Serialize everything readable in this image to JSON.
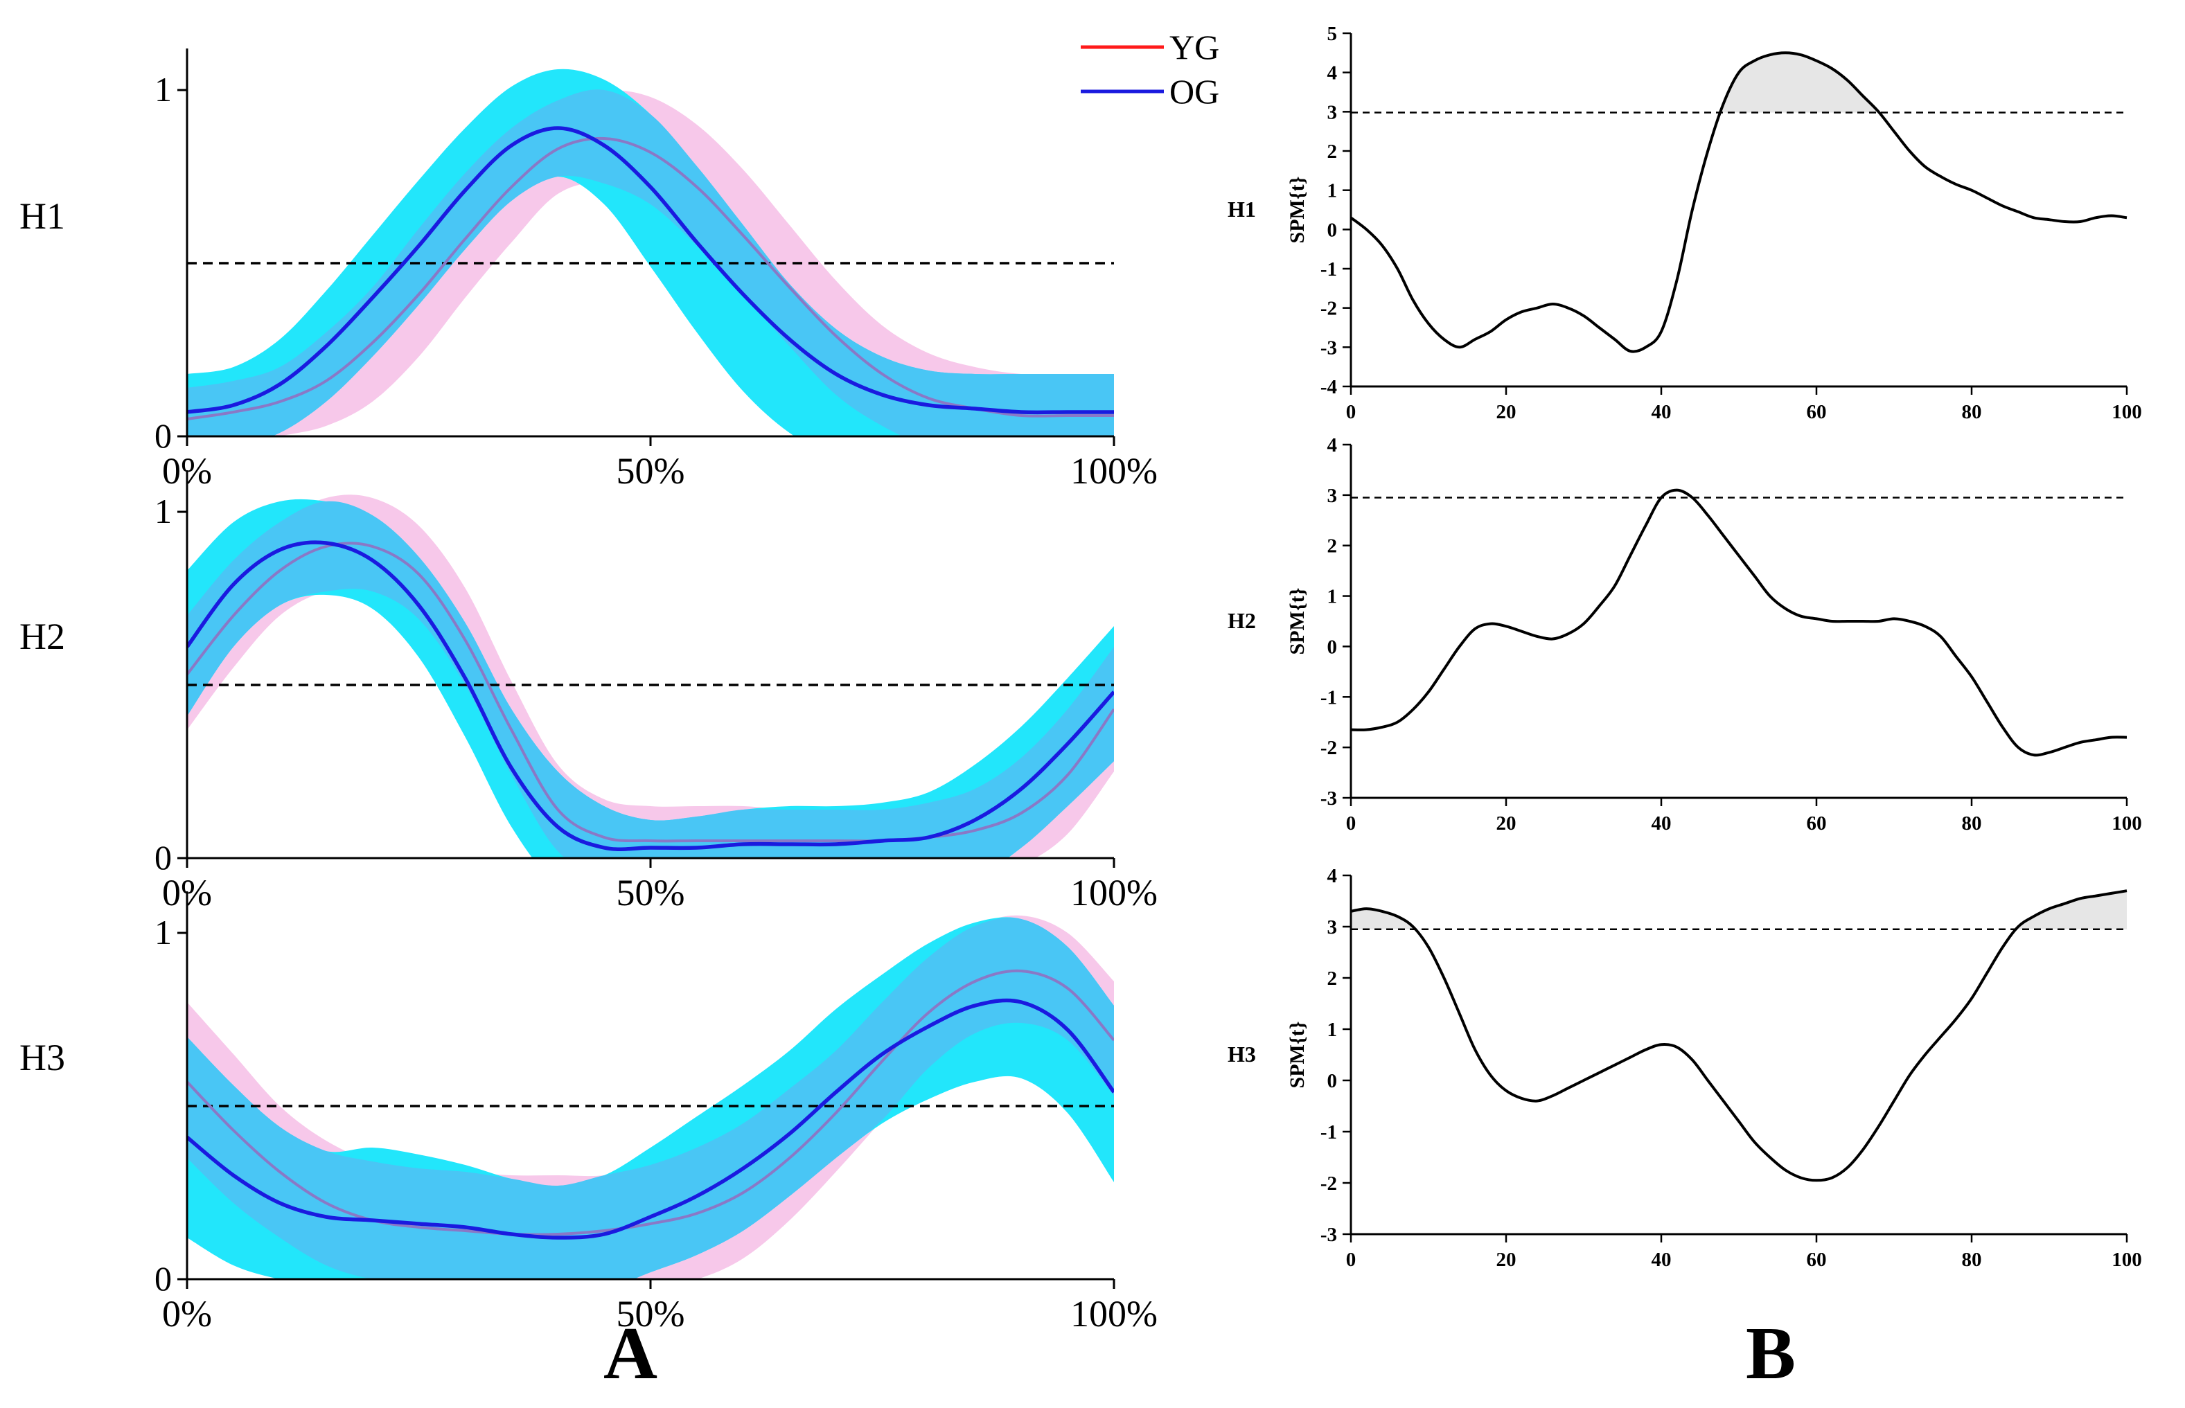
{
  "figure": {
    "panel_labels": [
      "A",
      "B"
    ],
    "legend": [
      {
        "name": "YG",
        "color": "#ff1a1a"
      },
      {
        "name": "OG",
        "color": "#1a1adf"
      }
    ],
    "colors": {
      "yg_band": "#f7c8ea",
      "og_band": "#22e6fb",
      "overlap": "#49c6f5",
      "yg_line": "#8a78c6",
      "og_line": "#1a1adf",
      "spm_line": "#000000",
      "suprathreshold": "#e6e6e6"
    }
  },
  "chart_data": [
    {
      "type": "area",
      "panel": "A",
      "row_label": "H1",
      "x": [
        0,
        5,
        10,
        15,
        20,
        25,
        30,
        35,
        40,
        45,
        50,
        55,
        60,
        65,
        70,
        75,
        80,
        85,
        90,
        95,
        100
      ],
      "x_tick_labels": [
        "0%",
        "50%",
        "100%"
      ],
      "y_tick_labels": [
        "0",
        "1"
      ],
      "ylim": [
        0,
        1.1
      ],
      "threshold": 0.5,
      "series": [
        {
          "name": "YG",
          "mean": [
            0.05,
            0.07,
            0.1,
            0.16,
            0.27,
            0.41,
            0.57,
            0.72,
            0.83,
            0.86,
            0.82,
            0.72,
            0.58,
            0.43,
            0.29,
            0.18,
            0.11,
            0.08,
            0.06,
            0.06,
            0.06
          ],
          "lower": [
            -0.05,
            -0.03,
            0.0,
            0.03,
            0.1,
            0.23,
            0.4,
            0.56,
            0.7,
            0.73,
            0.67,
            0.55,
            0.41,
            0.26,
            0.12,
            0.03,
            -0.03,
            -0.06,
            -0.08,
            -0.08,
            -0.08
          ],
          "upper": [
            0.14,
            0.16,
            0.2,
            0.3,
            0.43,
            0.6,
            0.76,
            0.89,
            0.97,
            1.0,
            0.98,
            0.9,
            0.77,
            0.61,
            0.45,
            0.32,
            0.24,
            0.2,
            0.18,
            0.18,
            0.18
          ]
        },
        {
          "name": "OG",
          "mean": [
            0.07,
            0.09,
            0.15,
            0.26,
            0.4,
            0.55,
            0.71,
            0.84,
            0.89,
            0.84,
            0.72,
            0.56,
            0.41,
            0.28,
            0.18,
            0.12,
            0.09,
            0.08,
            0.07,
            0.07,
            0.07
          ],
          "lower": [
            -0.04,
            -0.03,
            0.01,
            0.1,
            0.23,
            0.38,
            0.54,
            0.68,
            0.75,
            0.67,
            0.49,
            0.3,
            0.13,
            0.01,
            -0.06,
            -0.09,
            -0.1,
            -0.1,
            -0.1,
            -0.1,
            -0.1
          ],
          "upper": [
            0.18,
            0.2,
            0.28,
            0.42,
            0.58,
            0.74,
            0.89,
            1.01,
            1.06,
            1.03,
            0.93,
            0.78,
            0.61,
            0.44,
            0.31,
            0.23,
            0.19,
            0.18,
            0.18,
            0.18,
            0.18
          ]
        }
      ]
    },
    {
      "type": "area",
      "panel": "A",
      "row_label": "H2",
      "x": [
        0,
        5,
        10,
        15,
        20,
        25,
        30,
        35,
        40,
        45,
        50,
        55,
        60,
        65,
        70,
        75,
        80,
        85,
        90,
        95,
        100
      ],
      "x_tick_labels": [
        "0%",
        "50%",
        "100%"
      ],
      "y_tick_labels": [
        "0",
        "1"
      ],
      "ylim": [
        0,
        1.1
      ],
      "threshold": 0.5,
      "series": [
        {
          "name": "YG",
          "mean": [
            0.53,
            0.7,
            0.83,
            0.9,
            0.9,
            0.82,
            0.63,
            0.37,
            0.14,
            0.06,
            0.05,
            0.05,
            0.05,
            0.05,
            0.05,
            0.05,
            0.06,
            0.08,
            0.13,
            0.24,
            0.43
          ],
          "lower": [
            0.37,
            0.55,
            0.7,
            0.77,
            0.77,
            0.69,
            0.5,
            0.24,
            0.02,
            -0.05,
            -0.06,
            -0.06,
            -0.06,
            -0.06,
            -0.06,
            -0.06,
            -0.06,
            -0.05,
            -0.02,
            0.07,
            0.25
          ],
          "upper": [
            0.7,
            0.86,
            0.97,
            1.04,
            1.04,
            0.96,
            0.78,
            0.51,
            0.27,
            0.17,
            0.15,
            0.15,
            0.15,
            0.14,
            0.14,
            0.14,
            0.16,
            0.2,
            0.29,
            0.43,
            0.61
          ]
        },
        {
          "name": "OG",
          "mean": [
            0.61,
            0.79,
            0.89,
            0.91,
            0.86,
            0.73,
            0.52,
            0.26,
            0.09,
            0.03,
            0.03,
            0.03,
            0.04,
            0.04,
            0.04,
            0.05,
            0.06,
            0.11,
            0.2,
            0.33,
            0.48
          ],
          "lower": [
            0.41,
            0.61,
            0.73,
            0.76,
            0.72,
            0.58,
            0.35,
            0.09,
            -0.08,
            -0.12,
            -0.12,
            -0.12,
            -0.12,
            -0.12,
            -0.12,
            -0.11,
            -0.1,
            -0.06,
            0.03,
            0.15,
            0.28
          ],
          "upper": [
            0.83,
            0.97,
            1.03,
            1.03,
            0.99,
            0.87,
            0.68,
            0.43,
            0.25,
            0.15,
            0.11,
            0.12,
            0.14,
            0.15,
            0.15,
            0.16,
            0.19,
            0.27,
            0.38,
            0.52,
            0.67
          ]
        }
      ]
    },
    {
      "type": "area",
      "panel": "A",
      "row_label": "H3",
      "x": [
        0,
        5,
        10,
        15,
        20,
        25,
        30,
        35,
        40,
        45,
        50,
        55,
        60,
        65,
        70,
        75,
        80,
        85,
        90,
        95,
        100
      ],
      "x_tick_labels": [
        "0%",
        "50%",
        "100%"
      ],
      "y_tick_labels": [
        "0",
        "1"
      ],
      "ylim": [
        0,
        1.1
      ],
      "threshold": 0.5,
      "series": [
        {
          "name": "YG",
          "mean": [
            0.57,
            0.43,
            0.31,
            0.22,
            0.17,
            0.15,
            0.14,
            0.13,
            0.13,
            0.14,
            0.16,
            0.19,
            0.25,
            0.35,
            0.48,
            0.63,
            0.77,
            0.86,
            0.89,
            0.84,
            0.69
          ],
          "lower": [
            0.35,
            0.22,
            0.12,
            0.04,
            0.0,
            -0.01,
            -0.02,
            -0.03,
            -0.03,
            -0.03,
            -0.02,
            0.0,
            0.06,
            0.17,
            0.31,
            0.46,
            0.61,
            0.71,
            0.74,
            0.69,
            0.53
          ],
          "upper": [
            0.8,
            0.65,
            0.5,
            0.4,
            0.34,
            0.32,
            0.31,
            0.3,
            0.3,
            0.3,
            0.33,
            0.38,
            0.45,
            0.55,
            0.66,
            0.8,
            0.93,
            1.02,
            1.05,
            1.0,
            0.86
          ]
        },
        {
          "name": "OG",
          "mean": [
            0.41,
            0.3,
            0.22,
            0.18,
            0.17,
            0.16,
            0.15,
            0.13,
            0.12,
            0.13,
            0.18,
            0.24,
            0.32,
            0.42,
            0.54,
            0.65,
            0.73,
            0.79,
            0.8,
            0.72,
            0.54
          ],
          "lower": [
            0.12,
            0.04,
            0.0,
            -0.02,
            -0.02,
            -0.02,
            -0.02,
            -0.03,
            -0.04,
            -0.03,
            0.02,
            0.07,
            0.14,
            0.24,
            0.35,
            0.45,
            0.52,
            0.57,
            0.58,
            0.48,
            0.28
          ],
          "upper": [
            0.7,
            0.56,
            0.44,
            0.37,
            0.38,
            0.36,
            0.33,
            0.29,
            0.27,
            0.3,
            0.38,
            0.47,
            0.56,
            0.66,
            0.78,
            0.88,
            0.97,
            1.03,
            1.04,
            0.96,
            0.79
          ]
        }
      ]
    },
    {
      "type": "line",
      "panel": "B",
      "row_label": "H1",
      "ylabel": "SPM{t}",
      "xlim": [
        0,
        100
      ],
      "ylim": [
        -4,
        5
      ],
      "x_ticks": [
        0,
        20,
        40,
        60,
        80,
        100
      ],
      "y_ticks": [
        -4,
        -3,
        -2,
        -1,
        0,
        1,
        2,
        3,
        4,
        5
      ],
      "threshold": 2.98,
      "x": [
        0,
        2,
        4,
        6,
        8,
        10,
        12,
        14,
        16,
        18,
        20,
        22,
        24,
        26,
        28,
        30,
        32,
        34,
        36,
        38,
        40,
        42,
        44,
        46,
        48,
        50,
        52,
        54,
        56,
        58,
        60,
        62,
        64,
        66,
        68,
        70,
        72,
        74,
        76,
        78,
        80,
        82,
        84,
        86,
        88,
        90,
        92,
        94,
        96,
        98,
        100
      ],
      "values": [
        0.3,
        0.0,
        -0.4,
        -1.0,
        -1.8,
        -2.4,
        -2.8,
        -3.0,
        -2.8,
        -2.6,
        -2.3,
        -2.1,
        -2.0,
        -1.9,
        -2.0,
        -2.2,
        -2.5,
        -2.8,
        -3.1,
        -3.0,
        -2.6,
        -1.3,
        0.5,
        2.0,
        3.2,
        4.0,
        4.3,
        4.45,
        4.5,
        4.45,
        4.3,
        4.1,
        3.8,
        3.4,
        3.0,
        2.5,
        2.0,
        1.6,
        1.35,
        1.15,
        1.0,
        0.8,
        0.6,
        0.45,
        0.3,
        0.25,
        0.2,
        0.2,
        0.3,
        0.35,
        0.3
      ]
    },
    {
      "type": "line",
      "panel": "B",
      "row_label": "H2",
      "ylabel": "SPM{t}",
      "xlim": [
        0,
        100
      ],
      "ylim": [
        -3,
        4
      ],
      "x_ticks": [
        0,
        20,
        40,
        60,
        80,
        100
      ],
      "y_ticks": [
        -3,
        -2,
        -1,
        0,
        1,
        2,
        3,
        4
      ],
      "threshold": 2.95,
      "x": [
        0,
        2,
        4,
        6,
        8,
        10,
        12,
        14,
        16,
        18,
        20,
        22,
        24,
        26,
        28,
        30,
        32,
        34,
        36,
        38,
        40,
        42,
        44,
        46,
        48,
        50,
        52,
        54,
        56,
        58,
        60,
        62,
        64,
        66,
        68,
        70,
        72,
        74,
        76,
        78,
        80,
        82,
        84,
        86,
        88,
        90,
        92,
        94,
        96,
        98,
        100
      ],
      "values": [
        -1.65,
        -1.65,
        -1.6,
        -1.5,
        -1.25,
        -0.9,
        -0.45,
        0.0,
        0.35,
        0.45,
        0.4,
        0.3,
        0.2,
        0.15,
        0.25,
        0.45,
        0.8,
        1.2,
        1.8,
        2.4,
        2.95,
        3.1,
        2.95,
        2.6,
        2.2,
        1.8,
        1.4,
        1.0,
        0.75,
        0.6,
        0.55,
        0.5,
        0.5,
        0.5,
        0.5,
        0.55,
        0.5,
        0.4,
        0.2,
        -0.2,
        -0.6,
        -1.1,
        -1.6,
        -2.0,
        -2.15,
        -2.1,
        -2.0,
        -1.9,
        -1.85,
        -1.8,
        -1.8
      ]
    },
    {
      "type": "line",
      "panel": "B",
      "row_label": "H3",
      "ylabel": "SPM{t}",
      "xlim": [
        0,
        100
      ],
      "ylim": [
        -3,
        4
      ],
      "x_ticks": [
        0,
        20,
        40,
        60,
        80,
        100
      ],
      "y_ticks": [
        -3,
        -2,
        -1,
        0,
        1,
        2,
        3,
        4
      ],
      "threshold": 2.95,
      "x": [
        0,
        2,
        4,
        6,
        8,
        10,
        12,
        14,
        16,
        18,
        20,
        22,
        24,
        26,
        28,
        30,
        32,
        34,
        36,
        38,
        40,
        42,
        44,
        46,
        48,
        50,
        52,
        54,
        56,
        58,
        60,
        62,
        64,
        66,
        68,
        70,
        72,
        74,
        76,
        78,
        80,
        82,
        84,
        86,
        88,
        90,
        92,
        94,
        96,
        98,
        100
      ],
      "values": [
        3.3,
        3.35,
        3.3,
        3.2,
        3.0,
        2.6,
        2.0,
        1.3,
        0.6,
        0.1,
        -0.2,
        -0.35,
        -0.4,
        -0.3,
        -0.15,
        0.0,
        0.15,
        0.3,
        0.45,
        0.6,
        0.7,
        0.65,
        0.4,
        0.0,
        -0.4,
        -0.8,
        -1.2,
        -1.5,
        -1.75,
        -1.9,
        -1.95,
        -1.9,
        -1.7,
        -1.35,
        -0.9,
        -0.4,
        0.1,
        0.5,
        0.85,
        1.2,
        1.6,
        2.1,
        2.6,
        3.0,
        3.2,
        3.35,
        3.45,
        3.55,
        3.6,
        3.65,
        3.7
      ]
    }
  ]
}
